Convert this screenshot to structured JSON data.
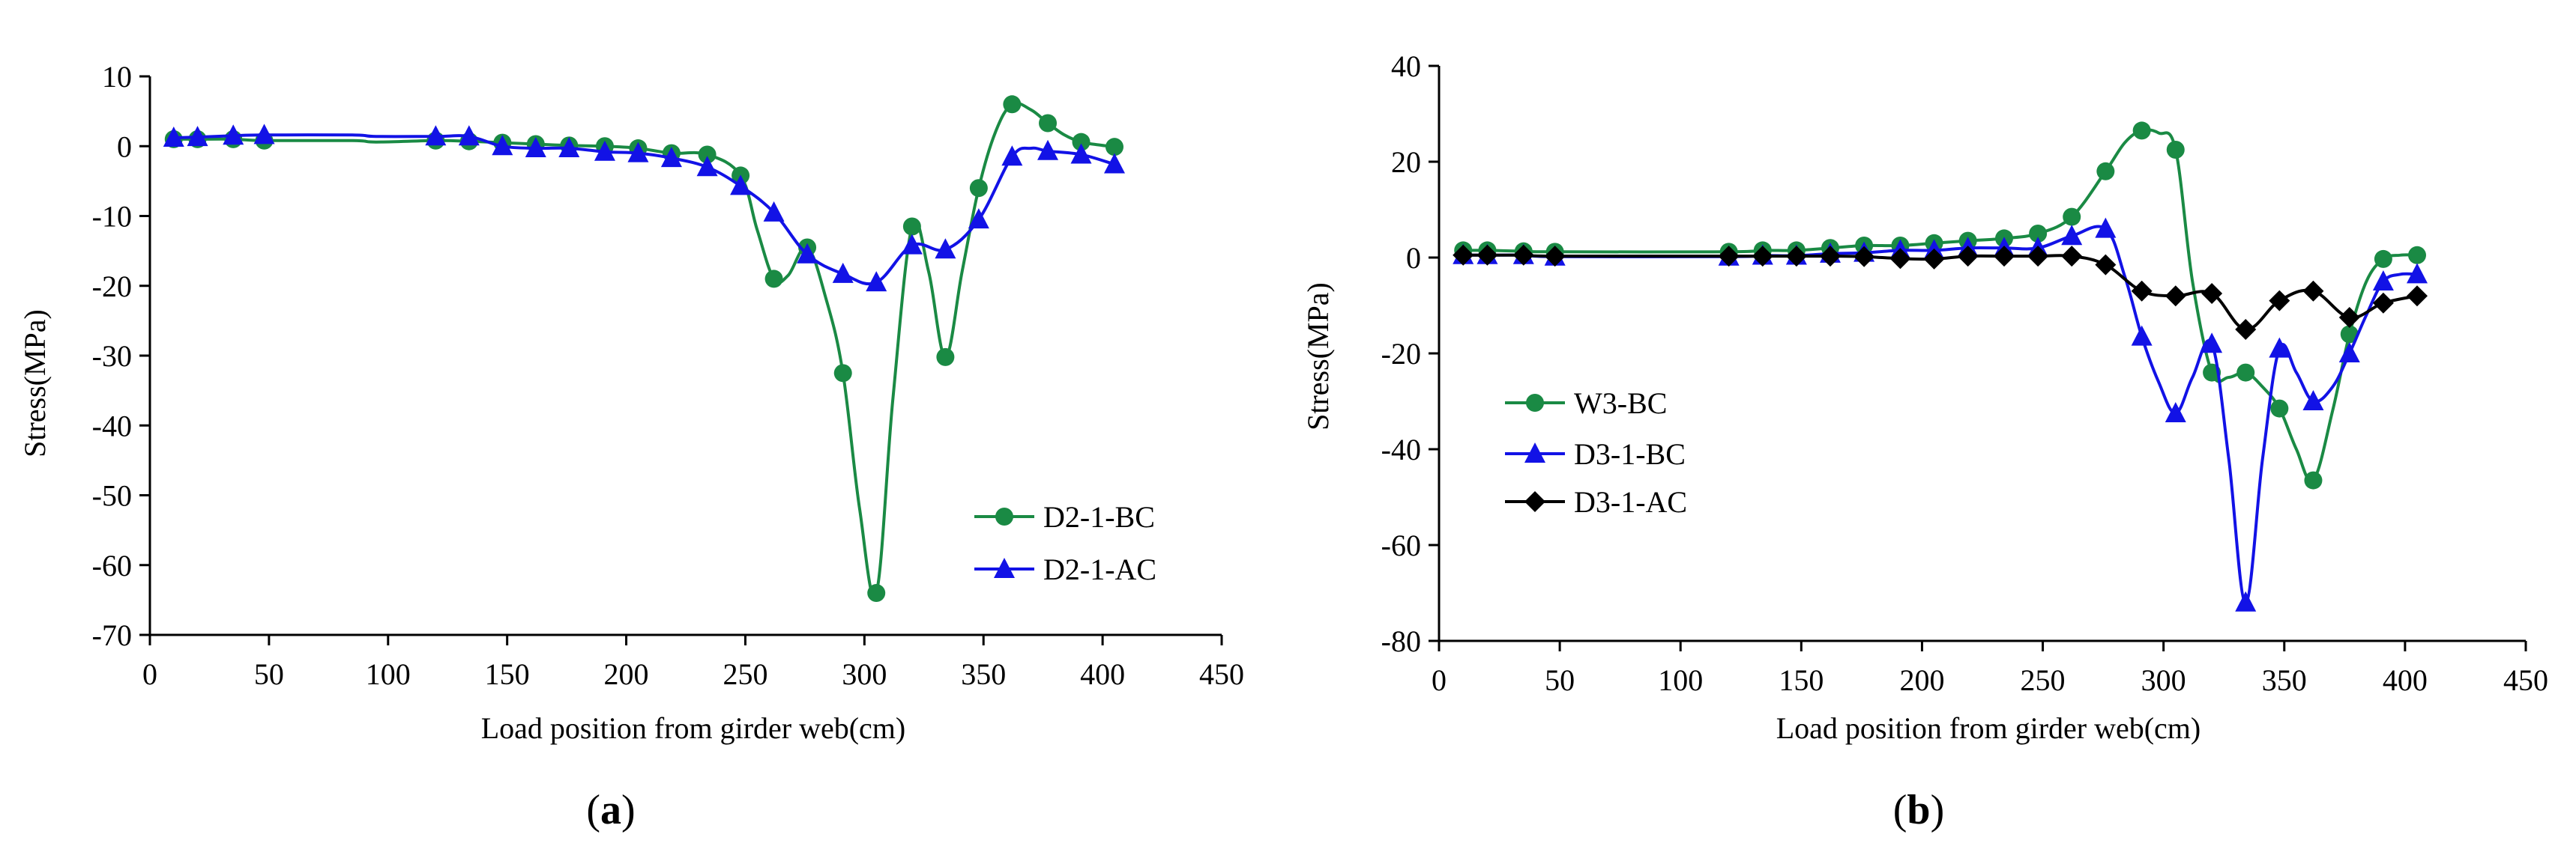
{
  "chart_data": [
    {
      "id": "a",
      "type": "line",
      "panel_label": "a",
      "xlabel": "Load position from girder web(cm)",
      "ylabel": "Stress(MPa)",
      "xlim": [
        0,
        450
      ],
      "ylim": [
        -70,
        10
      ],
      "xticks": [
        0,
        50,
        100,
        150,
        200,
        250,
        300,
        350,
        400,
        450
      ],
      "yticks": [
        10,
        0,
        -10,
        -20,
        -30,
        -40,
        -50,
        -60,
        -70
      ],
      "legend_position": "bottom-right",
      "series": [
        {
          "name": "D2-1-BC",
          "color": "#1a8a44",
          "marker": "circle",
          "x": [
            10,
            20,
            35,
            48,
            120,
            134,
            148,
            162,
            176,
            191,
            205,
            219,
            234,
            248,
            262,
            276,
            291,
            305,
            320,
            334,
            348,
            362,
            377,
            391,
            405
          ],
          "y": [
            1,
            1,
            1,
            0.8,
            0.8,
            0.7,
            0.5,
            0.3,
            0.1,
            0,
            -0.3,
            -1,
            -1.2,
            -4.2,
            -19,
            -14.5,
            -32.5,
            -64,
            -11.5,
            -30.2,
            -6,
            6,
            3.3,
            0.6,
            -0.1
          ],
          "line_x": [
            10,
            20,
            35,
            48,
            85,
            95,
            120,
            134,
            148,
            162,
            176,
            191,
            205,
            219,
            234,
            248,
            255,
            262,
            268,
            276,
            284,
            291,
            298,
            305,
            312,
            320,
            327,
            334,
            341,
            348,
            355,
            362,
            370,
            377,
            384,
            391,
            398,
            405
          ],
          "line_y": [
            1,
            1,
            1,
            0.8,
            0.8,
            0.6,
            0.8,
            0.7,
            0.5,
            0.3,
            0.1,
            0,
            -0.3,
            -1,
            -1.2,
            -4.2,
            -12,
            -19,
            -18.5,
            -14.5,
            -22,
            -32.5,
            -52,
            -64,
            -36,
            -11.5,
            -18,
            -30.2,
            -18,
            -6,
            2,
            6,
            5.2,
            3.3,
            1.6,
            0.6,
            0.2,
            -0.1
          ]
        },
        {
          "name": "D2-1-AC",
          "color": "#1212e6",
          "marker": "triangle",
          "x": [
            10,
            20,
            35,
            48,
            120,
            134,
            148,
            162,
            176,
            191,
            205,
            219,
            234,
            248,
            262,
            276,
            291,
            305,
            320,
            334,
            348,
            362,
            377,
            391,
            405
          ],
          "y": [
            1.2,
            1.3,
            1.5,
            1.6,
            1.4,
            1.4,
            0,
            -0.3,
            -0.3,
            -0.8,
            -1,
            -1.7,
            -3,
            -5.7,
            -9.5,
            -15.5,
            -18.3,
            -19.5,
            -14.2,
            -14.8,
            -10.5,
            -1.5,
            -0.7,
            -1.2,
            -2.6
          ],
          "line_x": [
            10,
            20,
            35,
            48,
            85,
            95,
            120,
            134,
            148,
            162,
            176,
            191,
            205,
            219,
            234,
            248,
            262,
            276,
            291,
            305,
            320,
            334,
            348,
            362,
            370,
            377,
            391,
            405
          ],
          "line_y": [
            1.2,
            1.3,
            1.5,
            1.6,
            1.6,
            1.4,
            1.4,
            1.4,
            0,
            -0.3,
            -0.3,
            -0.8,
            -1,
            -1.7,
            -3,
            -5.7,
            -9.5,
            -15.5,
            -18.3,
            -19.5,
            -14.2,
            -14.8,
            -10.5,
            -1.5,
            -0.3,
            -0.7,
            -1.2,
            -2.6
          ]
        }
      ]
    },
    {
      "id": "b",
      "type": "line",
      "panel_label": "b",
      "xlabel": "Load position from girder web(cm)",
      "ylabel": "Stress(MPa)",
      "xlim": [
        0,
        450
      ],
      "ylim": [
        -80,
        40
      ],
      "xticks": [
        0,
        50,
        100,
        150,
        200,
        250,
        300,
        350,
        400,
        450
      ],
      "yticks": [
        40,
        20,
        0,
        -20,
        -40,
        -60,
        -80
      ],
      "legend_position": "left-middle",
      "series": [
        {
          "name": "W3-BC",
          "color": "#1a8a44",
          "marker": "circle",
          "x": [
            10,
            20,
            35,
            48,
            120,
            134,
            148,
            162,
            176,
            191,
            205,
            219,
            234,
            248,
            262,
            276,
            291,
            305,
            320,
            334,
            348,
            362,
            377,
            391,
            405
          ],
          "y": [
            1.5,
            1.5,
            1.3,
            1.2,
            1.2,
            1.5,
            1.5,
            2,
            2.5,
            2.5,
            3,
            3.5,
            4,
            5,
            8.5,
            18,
            26.5,
            22.5,
            -24,
            -24,
            -31.5,
            -46.5,
            -16,
            -0.3,
            0.5
          ],
          "line_x": [
            10,
            20,
            35,
            48,
            120,
            134,
            148,
            162,
            176,
            191,
            205,
            219,
            234,
            248,
            262,
            276,
            284,
            291,
            298,
            305,
            312,
            320,
            327,
            334,
            341,
            348,
            355,
            362,
            370,
            377,
            384,
            391,
            398,
            405
          ],
          "line_y": [
            1.5,
            1.5,
            1.3,
            1.2,
            1.2,
            1.5,
            1.5,
            2,
            2.5,
            2.5,
            3,
            3.5,
            4,
            5,
            8.5,
            18,
            24,
            26.5,
            26,
            22.5,
            -5,
            -24,
            -25,
            -24,
            -27,
            -31.5,
            -40,
            -46.5,
            -32,
            -16,
            -5,
            -0.3,
            0.5,
            0.5
          ]
        },
        {
          "name": "D3-1-BC",
          "color": "#1212e6",
          "marker": "triangle",
          "x": [
            10,
            20,
            35,
            48,
            120,
            134,
            148,
            162,
            176,
            191,
            205,
            219,
            234,
            248,
            262,
            276,
            291,
            305,
            320,
            334,
            348,
            362,
            377,
            391,
            405
          ],
          "y": [
            0.5,
            0.5,
            0.5,
            0.2,
            0.2,
            0.4,
            0.4,
            0.8,
            1,
            1.5,
            1.5,
            2,
            2,
            2,
            4.5,
            6,
            -16.5,
            -32.5,
            -18,
            -72,
            -19,
            -30,
            -20,
            -5,
            -3.5
          ],
          "line_x": [
            10,
            20,
            35,
            48,
            120,
            134,
            148,
            162,
            176,
            191,
            205,
            219,
            234,
            248,
            262,
            276,
            284,
            291,
            298,
            305,
            312,
            320,
            327,
            334,
            341,
            348,
            355,
            362,
            370,
            377,
            384,
            391,
            398,
            405
          ],
          "line_y": [
            0.5,
            0.5,
            0.5,
            0.2,
            0.2,
            0.4,
            0.4,
            0.8,
            1,
            1.5,
            1.5,
            2,
            2,
            2,
            4.5,
            6,
            -4,
            -16.5,
            -26,
            -32.5,
            -25,
            -18,
            -42,
            -72,
            -42,
            -19,
            -24,
            -30,
            -27,
            -20,
            -12,
            -5,
            -3.5,
            -3.5
          ]
        },
        {
          "name": "D3-1-AC",
          "color": "#000000",
          "marker": "diamond",
          "x": [
            10,
            20,
            35,
            48,
            120,
            134,
            148,
            162,
            176,
            191,
            205,
            219,
            234,
            248,
            262,
            276,
            291,
            305,
            320,
            334,
            348,
            362,
            377,
            391,
            405
          ],
          "y": [
            0.5,
            0.5,
            0.5,
            0.3,
            0.3,
            0.3,
            0.3,
            0.3,
            0.2,
            -0.2,
            -0.3,
            0.3,
            0.3,
            0.3,
            0.3,
            -1.5,
            -7,
            -8,
            -7.5,
            -15,
            -9,
            -7,
            -12.5,
            -9.5,
            -8
          ],
          "line_x": [
            10,
            20,
            35,
            48,
            120,
            134,
            148,
            162,
            176,
            191,
            205,
            219,
            234,
            248,
            262,
            276,
            291,
            305,
            320,
            334,
            348,
            362,
            377,
            391,
            405
          ],
          "line_y": [
            0.5,
            0.5,
            0.5,
            0.3,
            0.3,
            0.3,
            0.3,
            0.3,
            0.2,
            -0.2,
            -0.3,
            0.3,
            0.3,
            0.3,
            0.3,
            -1.5,
            -7,
            -8,
            -7.5,
            -15,
            -9,
            -7,
            -12.5,
            -9.5,
            -8
          ]
        }
      ]
    }
  ]
}
